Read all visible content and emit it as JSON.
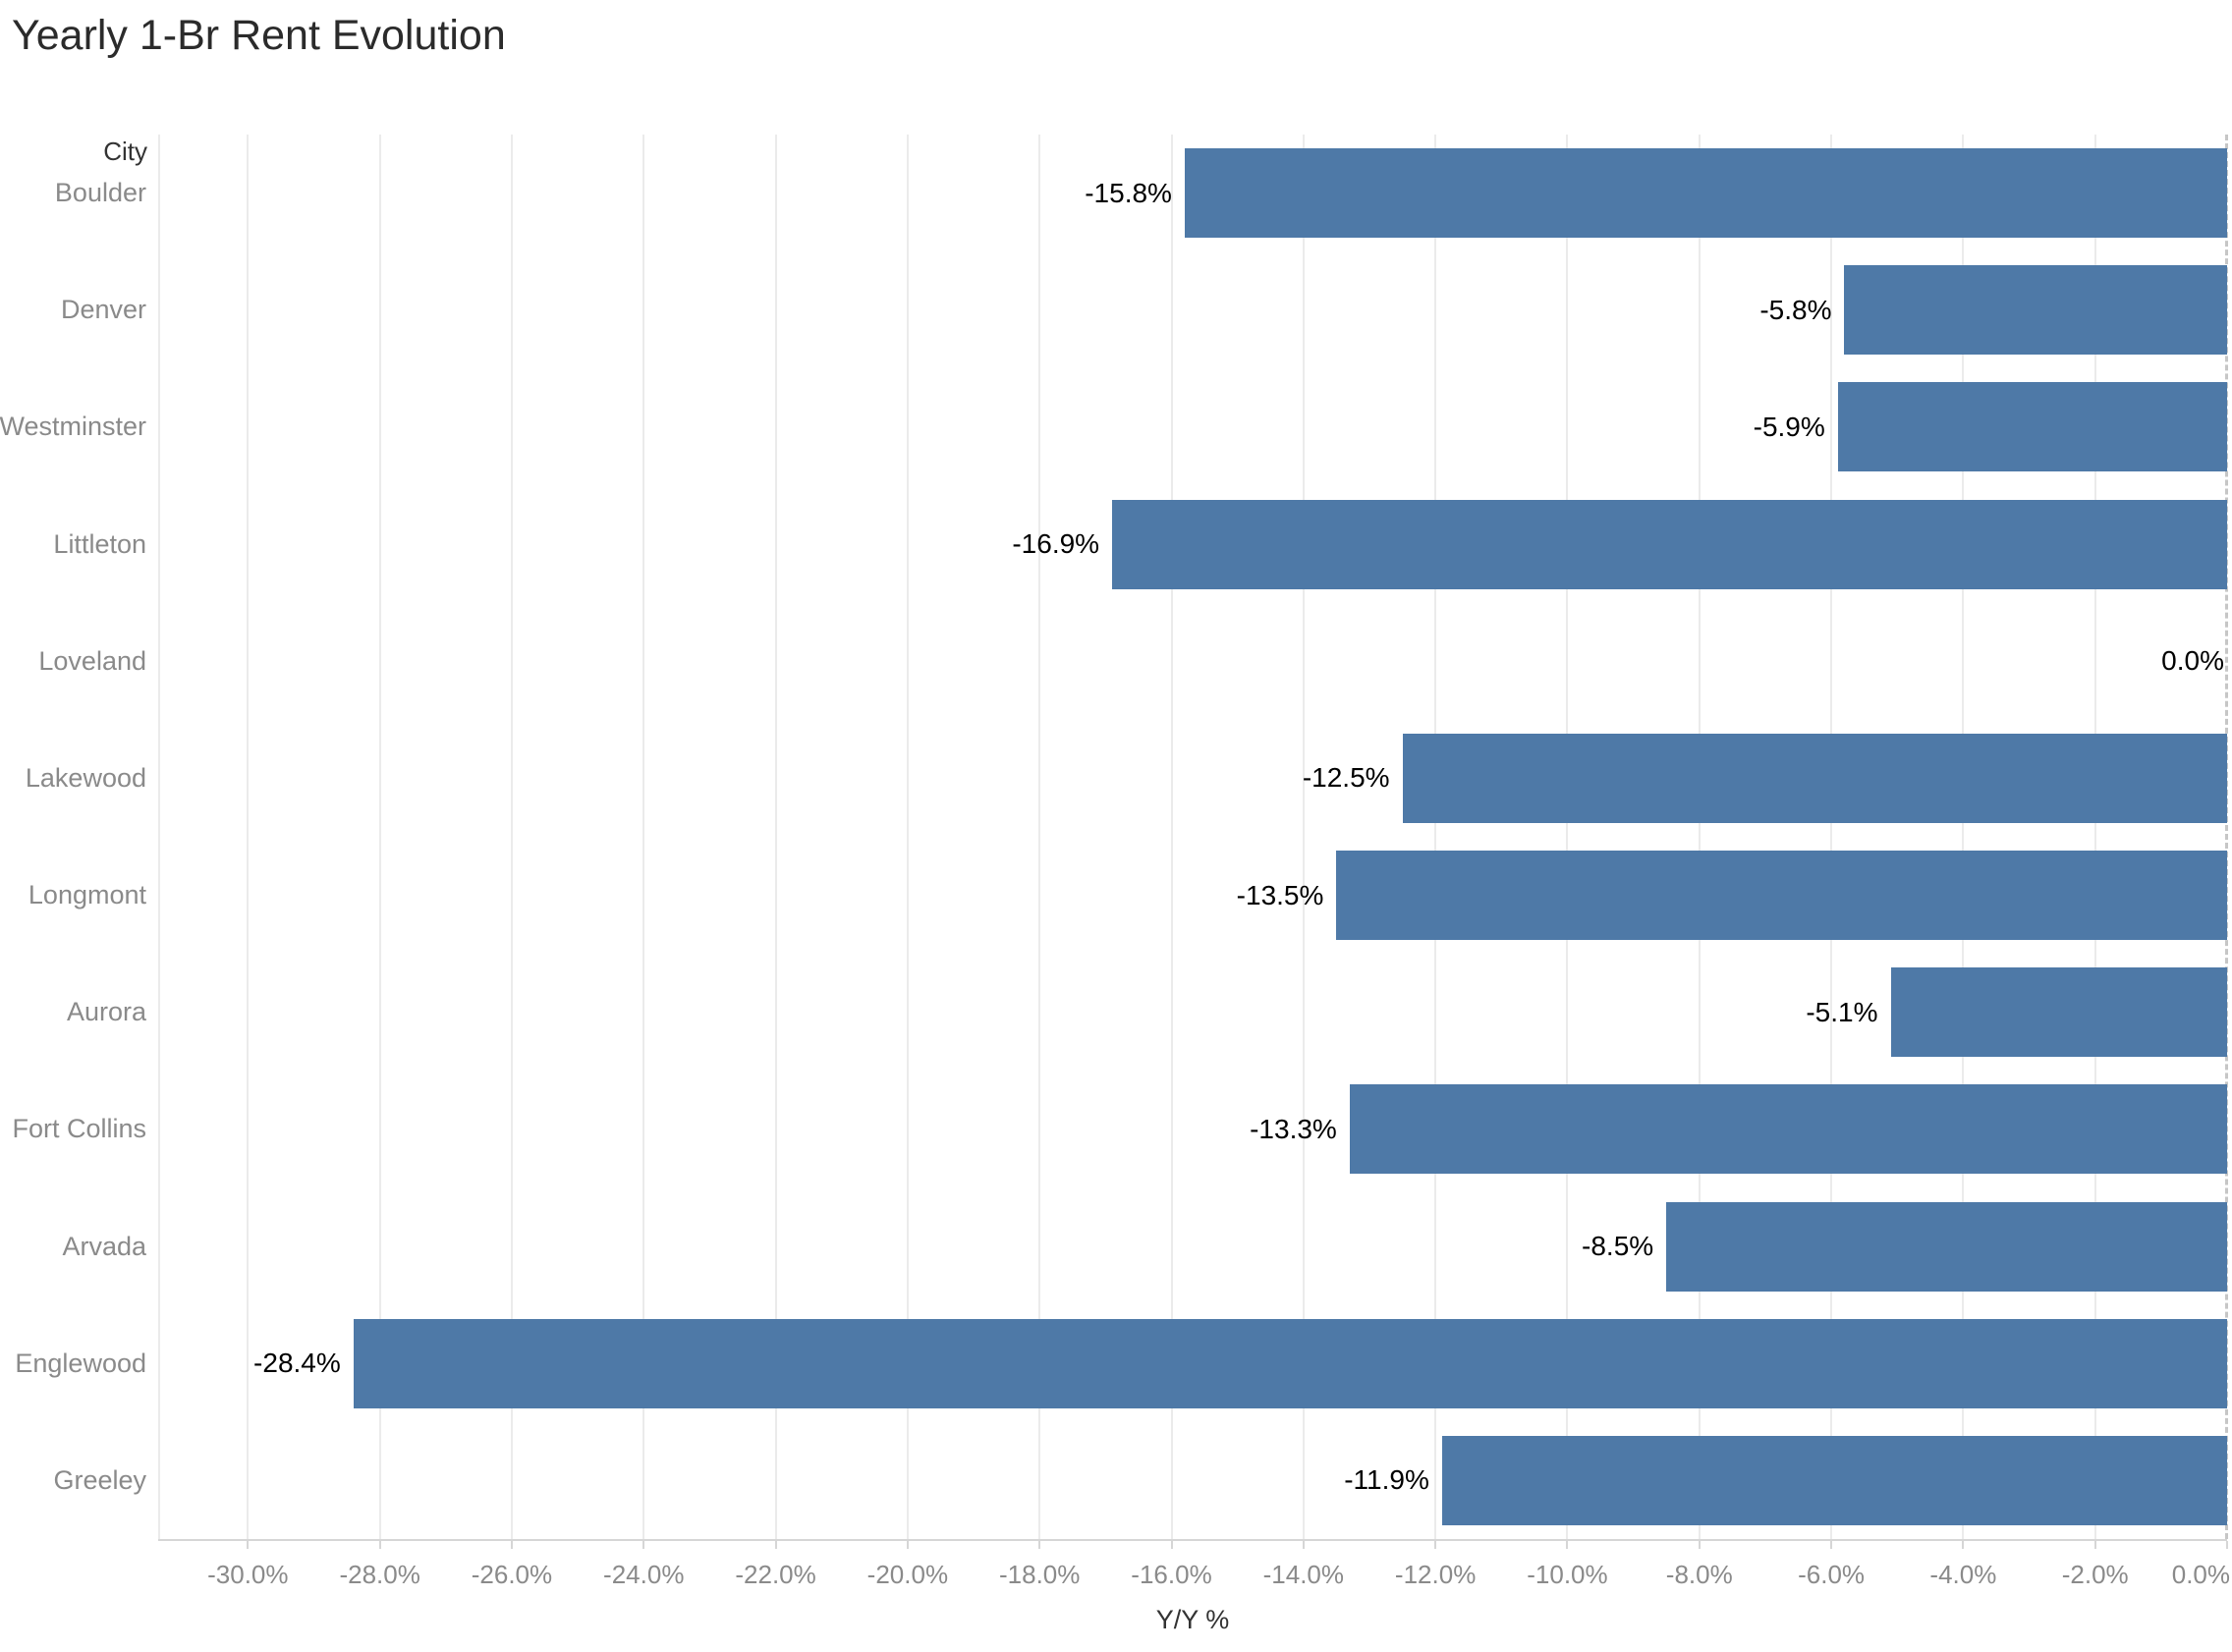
{
  "title": "Yearly 1-Br Rent Evolution",
  "row_header": "City",
  "axis": {
    "xlabel": "Y/Y %",
    "tick_values": [
      -30,
      -28,
      -26,
      -24,
      -22,
      -20,
      -18,
      -16,
      -14,
      -12,
      -10,
      -8,
      -6,
      -4,
      -2,
      0
    ],
    "tick_labels": [
      "-30.0%",
      "-28.0%",
      "-26.0%",
      "-24.0%",
      "-22.0%",
      "-20.0%",
      "-18.0%",
      "-16.0%",
      "-14.0%",
      "-12.0%",
      "-10.0%",
      "-8.0%",
      "-6.0%",
      "-4.0%",
      "-2.0%",
      "0.0%"
    ]
  },
  "chart_data": {
    "type": "bar",
    "orientation": "horizontal",
    "title": "Yearly 1-Br Rent Evolution",
    "xlabel": "Y/Y %",
    "ylabel": "City",
    "categories": [
      "Boulder",
      "Denver",
      "Westminster",
      "Littleton",
      "Loveland",
      "Lakewood",
      "Longmont",
      "Aurora",
      "Fort Collins",
      "Arvada",
      "Englewood",
      "Greeley"
    ],
    "values": [
      -15.8,
      -5.8,
      -5.9,
      -16.9,
      0.0,
      -12.5,
      -13.5,
      -5.1,
      -13.3,
      -8.5,
      -28.4,
      -11.9
    ],
    "value_labels": [
      "-15.8%",
      "-5.8%",
      "-5.9%",
      "-16.9%",
      "0.0%",
      "-12.5%",
      "-13.5%",
      "-5.1%",
      "-13.3%",
      "-8.5%",
      "-28.4%",
      "-11.9%"
    ],
    "xlim": [
      -31.36,
      0
    ],
    "grid": true,
    "zero_line": "dashed",
    "legend": "none",
    "bar_color": "#4E79A7"
  },
  "colors": {
    "bar": "#4E79A7",
    "gridline": "#ebebeb",
    "axis_line": "#d6d6d6",
    "zero_line": "#c6c6c6",
    "tick_text": "#8a8a8a",
    "label_text": "#000000",
    "title_text": "#2b2b2b",
    "header_text": "#333333"
  }
}
